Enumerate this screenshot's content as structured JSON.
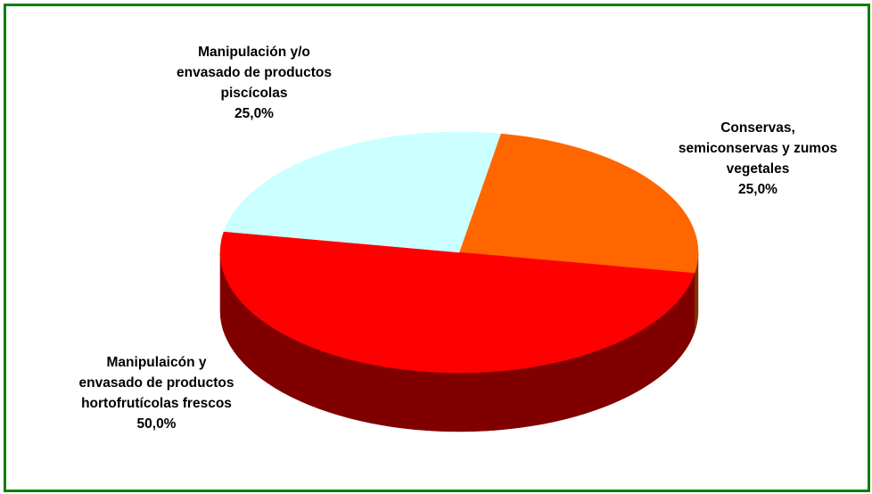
{
  "chart_data": {
    "type": "pie3d",
    "categories": [
      "Conservas, semiconservas y zumos vegetales",
      "Manipulaicón y envasado de productos hortofrutícolas frescos",
      "Manipulación y/o envasado de productos piscícolas"
    ],
    "values": [
      25,
      50,
      25
    ],
    "value_labels": [
      "25,0%",
      "50,0%",
      "25,0%"
    ],
    "colors": [
      "#ff6600",
      "#ff0000",
      "#ccffff"
    ]
  }
}
